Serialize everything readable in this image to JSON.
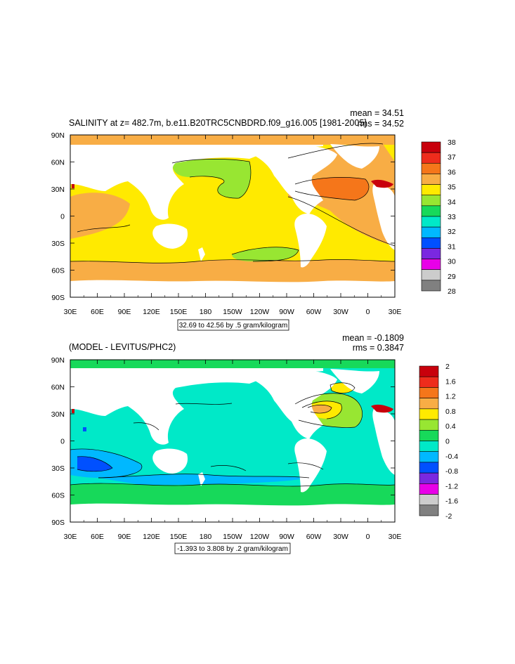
{
  "panels": [
    {
      "title": "SALINITY at z= 482.7m, b.e11.B20TRC5CNBDRD.f09_g16.005 [1981-2005]",
      "mean": "mean = 34.51",
      "rms": "rms = 34.52",
      "contour_info": "32.69 to 42.56 by .5 gram/kilogram",
      "x_ticks": [
        "30E",
        "60E",
        "90E",
        "120E",
        "150E",
        "180",
        "150W",
        "120W",
        "90W",
        "60W",
        "30W",
        "0",
        "30E"
      ],
      "y_ticks": [
        "90N",
        "60N",
        "30N",
        "0",
        "30S",
        "60S",
        "90S"
      ],
      "legend": {
        "labels": [
          "38",
          "37",
          "36",
          "35",
          "34",
          "33",
          "32",
          "31",
          "30",
          "29",
          "28"
        ],
        "colors": [
          "#c8000c",
          "#ee2c1c",
          "#f5761a",
          "#f8ad45",
          "#ffea00",
          "#98e632",
          "#17d95a",
          "#00e9c8",
          "#00b8ff",
          "#0050ff",
          "#7a28e0",
          "#e800e8",
          "#cccccc",
          "#808080"
        ]
      }
    },
    {
      "title": "(MODEL - LEVITUS/PHC2)",
      "mean": "mean = -0.1809",
      "rms": "rms = 0.3847",
      "contour_info": "-1.393 to 3.808 by .2 gram/kilogram",
      "x_ticks": [
        "30E",
        "60E",
        "90E",
        "120E",
        "150E",
        "180",
        "150W",
        "120W",
        "90W",
        "60W",
        "30W",
        "0",
        "30E"
      ],
      "y_ticks": [
        "90N",
        "60N",
        "30N",
        "0",
        "30S",
        "60S",
        "90S"
      ],
      "legend": {
        "labels": [
          "2",
          "1.6",
          "1.2",
          "0.8",
          "0.4",
          "0",
          "-0.4",
          "-0.8",
          "-1.2",
          "-1.6",
          "-2"
        ],
        "colors": [
          "#c8000c",
          "#ee2c1c",
          "#f5761a",
          "#f8ad45",
          "#ffea00",
          "#98e632",
          "#17d95a",
          "#00e9c8",
          "#00b8ff",
          "#0050ff",
          "#7a28e0",
          "#e800e8",
          "#cccccc",
          "#808080"
        ]
      }
    }
  ]
}
